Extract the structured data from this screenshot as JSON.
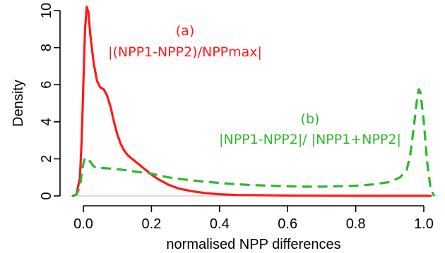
{
  "chart_data": {
    "type": "line",
    "title": "",
    "xlabel": "normalised NPP differences",
    "ylabel": "Density",
    "xlim": [
      -0.04,
      1.04
    ],
    "ylim": [
      0,
      10.4
    ],
    "x_ticks": [
      0.0,
      0.2,
      0.4,
      0.6,
      0.8,
      1.0
    ],
    "x_tick_labels": [
      "0.0",
      "0.2",
      "0.4",
      "0.6",
      "0.8",
      "1.0"
    ],
    "y_ticks": [
      0,
      2,
      4,
      6,
      8,
      10
    ],
    "y_tick_labels": [
      "0",
      "2",
      "4",
      "6",
      "8",
      "10"
    ],
    "grid": false,
    "legend": "none",
    "baseline": 0,
    "series": [
      {
        "name": "|(NPP1-NPP2)/NPPmax|",
        "label": "(a)",
        "color": "#ff1a1a",
        "style": "solid",
        "points": [
          [
            -0.03,
            0.0
          ],
          [
            -0.02,
            0.1
          ],
          [
            -0.01,
            1.0
          ],
          [
            -0.005,
            3.0
          ],
          [
            0.0,
            6.0
          ],
          [
            0.005,
            9.0
          ],
          [
            0.01,
            10.2
          ],
          [
            0.015,
            9.9
          ],
          [
            0.02,
            8.8
          ],
          [
            0.03,
            7.2
          ],
          [
            0.04,
            6.2
          ],
          [
            0.05,
            5.85
          ],
          [
            0.06,
            5.75
          ],
          [
            0.07,
            5.4
          ],
          [
            0.08,
            4.8
          ],
          [
            0.09,
            4.0
          ],
          [
            0.1,
            3.3
          ],
          [
            0.11,
            2.8
          ],
          [
            0.12,
            2.45
          ],
          [
            0.13,
            2.2
          ],
          [
            0.14,
            2.05
          ],
          [
            0.16,
            1.75
          ],
          [
            0.18,
            1.45
          ],
          [
            0.2,
            1.15
          ],
          [
            0.22,
            0.9
          ],
          [
            0.25,
            0.6
          ],
          [
            0.28,
            0.4
          ],
          [
            0.32,
            0.25
          ],
          [
            0.36,
            0.15
          ],
          [
            0.4,
            0.09
          ],
          [
            0.45,
            0.05
          ],
          [
            0.5,
            0.04
          ],
          [
            0.6,
            0.02
          ],
          [
            0.7,
            0.01
          ],
          [
            0.8,
            0.005
          ],
          [
            0.9,
            0.003
          ],
          [
            1.0,
            0.002
          ],
          [
            1.02,
            0.0
          ]
        ]
      },
      {
        "name": "|NPP1-NPP2|/ |NPP1+NPP2|",
        "label": "(b)",
        "color": "#2db82d",
        "style": "dashed",
        "points": [
          [
            -0.03,
            0.0
          ],
          [
            -0.02,
            0.08
          ],
          [
            -0.01,
            0.5
          ],
          [
            -0.005,
            1.2
          ],
          [
            0.0,
            1.75
          ],
          [
            0.005,
            2.05
          ],
          [
            0.01,
            2.05
          ],
          [
            0.02,
            1.85
          ],
          [
            0.03,
            1.6
          ],
          [
            0.04,
            1.5
          ],
          [
            0.06,
            1.5
          ],
          [
            0.1,
            1.45
          ],
          [
            0.15,
            1.32
          ],
          [
            0.2,
            1.2
          ],
          [
            0.25,
            1.0
          ],
          [
            0.3,
            0.88
          ],
          [
            0.35,
            0.78
          ],
          [
            0.4,
            0.7
          ],
          [
            0.45,
            0.63
          ],
          [
            0.5,
            0.58
          ],
          [
            0.55,
            0.55
          ],
          [
            0.6,
            0.52
          ],
          [
            0.65,
            0.5
          ],
          [
            0.7,
            0.5
          ],
          [
            0.75,
            0.52
          ],
          [
            0.8,
            0.55
          ],
          [
            0.85,
            0.62
          ],
          [
            0.9,
            0.75
          ],
          [
            0.93,
            1.0
          ],
          [
            0.95,
            1.4
          ],
          [
            0.96,
            2.2
          ],
          [
            0.97,
            3.6
          ],
          [
            0.98,
            5.2
          ],
          [
            0.985,
            5.75
          ],
          [
            0.99,
            5.6
          ],
          [
            1.0,
            4.0
          ],
          [
            1.01,
            1.8
          ],
          [
            1.02,
            0.4
          ],
          [
            1.03,
            0.0
          ]
        ]
      }
    ]
  }
}
